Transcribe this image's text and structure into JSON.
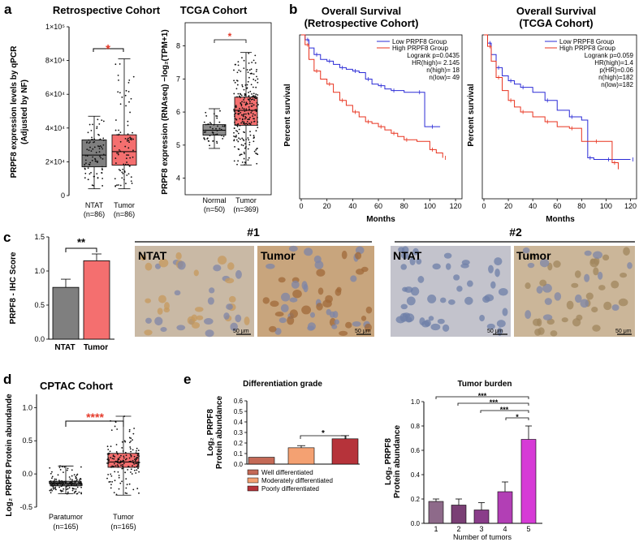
{
  "panel_labels": {
    "a": "a",
    "b": "b",
    "c": "c",
    "d": "d",
    "e": "e"
  },
  "colors": {
    "gray": "#7f7f7f",
    "red": "#f46f6f",
    "blue": "#2b2bd6",
    "km_red": "#e8321e",
    "sig_red": "#e53b2b",
    "grade1": "#c46a57",
    "grade2": "#f4a172",
    "grade3": "#b6333a",
    "burden1": "#8e6a8a",
    "burden2": "#7a3f75",
    "burden3": "#8a3d8a",
    "burden4": "#b23fb5",
    "burden5": "#d63bd6"
  },
  "panel_a1": {
    "title": "Retrospective Cohort",
    "ylabel_line1": "PRPF8 expression levels by qPCR",
    "ylabel_line2": "(Adjusted by NF)",
    "yticks": [
      "1×10⁵",
      "8×10⁴",
      "6×10⁴",
      "4×10⁴",
      "2×10⁴",
      "0"
    ],
    "significance": "*",
    "categories": [
      {
        "name": "NTAT",
        "n": "(n=86)"
      },
      {
        "name": "Tumor",
        "n": "(n=86)"
      }
    ]
  },
  "panel_a2": {
    "title": "TCGA Cohort",
    "ylabel": "PRPF8 expression (RNAseq) −log₂(TPM+1)",
    "yticks": [
      "8",
      "7",
      "6",
      "5",
      "4"
    ],
    "significance": "*",
    "categories": [
      {
        "name": "Normal",
        "n": "(n=50)"
      },
      {
        "name": "Tumor",
        "n": "(n=369)"
      }
    ]
  },
  "panel_b1": {
    "title_line1": "Overall  Survival",
    "title_line2": "(Retrospective Cohort)",
    "ylabel": "Percent survival",
    "xlabel": "Months",
    "xticks": [
      "0",
      "20",
      "40",
      "60",
      "80",
      "100",
      "120"
    ],
    "legend": [
      "Low PRPF8 Group",
      "High PRPF8 Group"
    ],
    "stats": [
      "Logrank p=0.0435",
      "HR(high)= 2.145",
      "n(high)= 18",
      "n(low)= 49"
    ]
  },
  "panel_b2": {
    "title_line1": "Overall  Survival",
    "title_line2": "(TCGA Cohort)",
    "ylabel": "Percent survival",
    "xlabel": "Months",
    "xticks": [
      "0",
      "20",
      "40",
      "60",
      "80",
      "100",
      "120"
    ],
    "legend": [
      "Low PRPF8 Group",
      "High PRPF8 Group"
    ],
    "stats": [
      "Logrank p=0.059",
      "HR(high)=1.4",
      "p(HR)=0.06",
      "n(high)=182",
      "n(low)=182"
    ]
  },
  "panel_c": {
    "ylabel": "PRPF8 - IHC Score",
    "yticks": [
      "1.5",
      "1.0",
      "0.5",
      "0.0"
    ],
    "significance": "**",
    "categories": [
      "NTAT",
      "Tumor"
    ],
    "group1": "#1",
    "group2": "#2",
    "image_labels": [
      "NTAT",
      "Tumor",
      "NTAT",
      "Tumor"
    ],
    "scalebar": "50 μm"
  },
  "panel_d": {
    "title": "CPTAC Cohort",
    "ylabel": "Log₂ PRPF8 Protein abundande",
    "yticks": [
      "1.0",
      "0.5",
      "0.0",
      "-0.5"
    ],
    "significance": "****",
    "categories": [
      {
        "name": "Paratumor",
        "n": "(n=165)"
      },
      {
        "name": "Tumor",
        "n": "(n=165)"
      }
    ]
  },
  "panel_e1": {
    "title": "Differentiation grade",
    "ylabel_line1": "Log₂ PRPF8",
    "ylabel_line2": "Protein abundance",
    "yticks": [
      "0.6",
      "0.5",
      "0.4",
      "0.3",
      "0.2",
      "0.1",
      "0.0"
    ],
    "significance": "*",
    "legend": [
      "Well differentiated",
      "Moderately differentiated",
      "Poorly differentiated"
    ]
  },
  "panel_e2": {
    "title": "Tumor burden",
    "ylabel_line1": "Log₂ PRPF8",
    "ylabel_line2": "Protein abundance",
    "xlabel": "Number of tumors",
    "yticks": [
      "1.0",
      "0.8",
      "0.6",
      "0.4",
      "0.2",
      "0.0"
    ],
    "xticks": [
      "1",
      "2",
      "3",
      "4",
      "5"
    ],
    "significance": [
      "***",
      "***",
      "***",
      "*"
    ]
  },
  "chart_data": [
    {
      "type": "box",
      "title": "Retrospective Cohort",
      "categories": [
        "NTAT",
        "Tumor"
      ],
      "series": [
        {
          "name": "NTAT",
          "q1": 17000,
          "median": 24000,
          "q3": 33000,
          "min": 4000,
          "max": 47000
        },
        {
          "name": "Tumor",
          "q1": 18000,
          "median": 26000,
          "q3": 36000,
          "min": 4000,
          "max": 81000
        }
      ],
      "ylim": [
        0,
        100000
      ],
      "ylabel": "PRPF8 expression levels by qPCR (Adjusted by NF)"
    },
    {
      "type": "box",
      "title": "TCGA Cohort",
      "categories": [
        "Normal",
        "Tumor"
      ],
      "series": [
        {
          "name": "Normal",
          "q1": 5.3,
          "median": 5.45,
          "q3": 5.62,
          "min": 4.9,
          "max": 6.1
        },
        {
          "name": "Tumor",
          "q1": 5.6,
          "median": 6.05,
          "q3": 6.45,
          "min": 4.4,
          "max": 7.8
        }
      ],
      "ylim": [
        3.5,
        8.7
      ],
      "ylabel": "PRPF8 expression (RNAseq) −log2(TPM+1)"
    },
    {
      "type": "line",
      "title": "Overall Survival (Retrospective Cohort)",
      "xlabel": "Months",
      "ylabel": "Percent survival",
      "xlim": [
        0,
        125
      ],
      "ylim": [
        0,
        1
      ],
      "series": [
        {
          "name": "Low PRPF8 Group",
          "x": [
            0,
            3,
            6,
            10,
            15,
            20,
            25,
            30,
            35,
            40,
            45,
            50,
            55,
            60,
            65,
            70,
            80,
            90,
            96,
            100,
            108
          ],
          "y": [
            1,
            0.97,
            0.92,
            0.88,
            0.85,
            0.84,
            0.82,
            0.8,
            0.79,
            0.78,
            0.77,
            0.73,
            0.7,
            0.69,
            0.67,
            0.66,
            0.65,
            0.65,
            0.44,
            0.44,
            0.44
          ]
        },
        {
          "name": "High PRPF8 Group",
          "x": [
            0,
            3,
            6,
            10,
            15,
            20,
            25,
            30,
            35,
            40,
            45,
            50,
            55,
            60,
            65,
            70,
            75,
            80,
            90,
            100,
            105,
            110
          ],
          "y": [
            1,
            0.94,
            0.85,
            0.78,
            0.73,
            0.7,
            0.65,
            0.6,
            0.57,
            0.53,
            0.5,
            0.47,
            0.46,
            0.44,
            0.42,
            0.4,
            0.38,
            0.36,
            0.35,
            0.3,
            0.28,
            0.25
          ]
        }
      ]
    },
    {
      "type": "line",
      "title": "Overall Survival (TCGA Cohort)",
      "xlabel": "Months",
      "ylabel": "Percent survival",
      "xlim": [
        0,
        125
      ],
      "ylim": [
        0,
        1
      ],
      "series": [
        {
          "name": "Low PRPF8 Group",
          "x": [
            0,
            3,
            6,
            10,
            15,
            20,
            25,
            30,
            40,
            50,
            60,
            70,
            80,
            85,
            90,
            100,
            110,
            120
          ],
          "y": [
            1,
            0.95,
            0.88,
            0.8,
            0.75,
            0.72,
            0.7,
            0.68,
            0.65,
            0.6,
            0.54,
            0.5,
            0.48,
            0.25,
            0.24,
            0.24,
            0.24,
            0.24
          ]
        },
        {
          "name": "High PRPF8 Group",
          "x": [
            0,
            3,
            6,
            10,
            15,
            20,
            25,
            30,
            40,
            50,
            60,
            70,
            80,
            90,
            100,
            105,
            110
          ],
          "y": [
            1,
            0.93,
            0.84,
            0.74,
            0.66,
            0.6,
            0.56,
            0.53,
            0.5,
            0.47,
            0.44,
            0.43,
            0.35,
            0.35,
            0.35,
            0.22,
            0.18
          ]
        }
      ]
    },
    {
      "type": "bar",
      "title": "PRPF8 - IHC Score",
      "categories": [
        "NTAT",
        "Tumor"
      ],
      "values": [
        0.76,
        1.15
      ],
      "errors": [
        0.12,
        0.1
      ],
      "ylim": [
        0,
        1.5
      ]
    },
    {
      "type": "box",
      "title": "CPTAC Cohort",
      "categories": [
        "Paratumor",
        "Tumor"
      ],
      "series": [
        {
          "name": "Paratumor",
          "q1": -0.18,
          "median": -0.15,
          "q3": -0.11,
          "min": -0.3,
          "max": 0.12
        },
        {
          "name": "Tumor",
          "q1": 0.1,
          "median": 0.18,
          "q3": 0.31,
          "min": -0.32,
          "max": 0.87
        }
      ],
      "ylim": [
        -0.5,
        1.2
      ],
      "ylabel": "Log2 PRPF8 Protein abundande"
    },
    {
      "type": "bar",
      "title": "Differentiation grade",
      "categories": [
        "Well differentiated",
        "Moderately differentiated",
        "Poorly differentiated"
      ],
      "values": [
        0.065,
        0.155,
        0.24
      ],
      "errors": [
        0,
        0.02,
        0.03
      ],
      "ylim": [
        0,
        0.6
      ]
    },
    {
      "type": "bar",
      "title": "Tumor burden",
      "categories": [
        "1",
        "2",
        "3",
        "4",
        "5"
      ],
      "values": [
        0.18,
        0.15,
        0.11,
        0.26,
        0.69
      ],
      "errors": [
        0.02,
        0.05,
        0.06,
        0.08,
        0.11
      ],
      "ylim": [
        0,
        1.0
      ],
      "xlabel": "Number of tumors"
    }
  ]
}
